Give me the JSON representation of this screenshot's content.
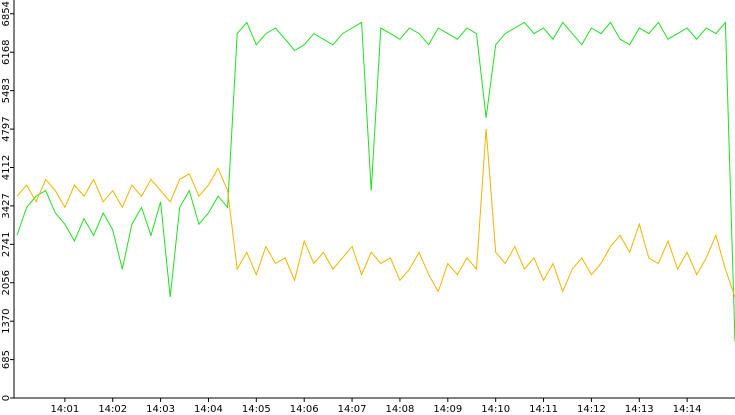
{
  "chart_data": {
    "type": "line",
    "x": [
      0,
      0.2,
      0.4,
      0.6,
      0.8,
      1.0,
      1.2,
      1.4,
      1.6,
      1.8,
      2.0,
      2.2,
      2.4,
      2.6,
      2.8,
      3.0,
      3.2,
      3.4,
      3.6,
      3.8,
      4.0,
      4.2,
      4.4,
      4.6,
      4.8,
      5.0,
      5.2,
      5.4,
      5.6,
      5.8,
      6.0,
      6.2,
      6.4,
      6.6,
      6.8,
      7.0,
      7.2,
      7.4,
      7.6,
      7.8,
      8.0,
      8.2,
      8.4,
      8.6,
      8.8,
      9.0,
      9.2,
      9.4,
      9.6,
      9.8,
      10.0,
      10.2,
      10.4,
      10.6,
      10.8,
      11.0,
      11.2,
      11.4,
      11.6,
      11.8,
      12.0,
      12.2,
      12.4,
      12.6,
      12.8,
      13.0,
      13.2,
      13.4,
      13.6,
      13.8,
      14.0,
      14.2,
      14.4,
      14.6,
      14.8,
      15.0
    ],
    "series": [
      {
        "color": "#22dd22",
        "values": [
          2900,
          3400,
          3600,
          3700,
          3300,
          3100,
          2800,
          3200,
          2900,
          3300,
          3000,
          2300,
          3100,
          3400,
          2900,
          3500,
          1800,
          3400,
          3700,
          3100,
          3300,
          3600,
          3400,
          6500,
          6700,
          6300,
          6500,
          6600,
          6400,
          6200,
          6300,
          6500,
          6400,
          6300,
          6500,
          6600,
          6700,
          3700,
          6600,
          6500,
          6400,
          6600,
          6500,
          6300,
          6600,
          6500,
          6400,
          6600,
          6500,
          5000,
          6300,
          6500,
          6600,
          6700,
          6500,
          6600,
          6400,
          6700,
          6500,
          6300,
          6600,
          6500,
          6700,
          6400,
          6300,
          6600,
          6500,
          6700,
          6400,
          6500,
          6600,
          6400,
          6600,
          6500,
          6700,
          1000
        ]
      },
      {
        "color": "#f0b400",
        "values": [
          3600,
          3800,
          3500,
          3900,
          3700,
          3400,
          3800,
          3600,
          3900,
          3500,
          3700,
          3400,
          3800,
          3600,
          3900,
          3700,
          3500,
          3900,
          4000,
          3600,
          3800,
          4100,
          3700,
          2300,
          2600,
          2200,
          2700,
          2400,
          2500,
          2100,
          2800,
          2400,
          2600,
          2300,
          2500,
          2700,
          2200,
          2600,
          2400,
          2500,
          2100,
          2300,
          2600,
          2200,
          1900,
          2400,
          2200,
          2500,
          2300,
          4800,
          2600,
          2400,
          2700,
          2300,
          2500,
          2100,
          2400,
          1900,
          2300,
          2500,
          2200,
          2400,
          2700,
          2900,
          2600,
          3100,
          2500,
          2400,
          2800,
          2300,
          2600,
          2200,
          2500,
          2900,
          2300,
          1800
        ]
      }
    ],
    "xlim": [
      0,
      15
    ],
    "xticks": [
      {
        "value": 1,
        "label": "14:01"
      },
      {
        "value": 2,
        "label": "14:02"
      },
      {
        "value": 3,
        "label": "14:03"
      },
      {
        "value": 4,
        "label": "14:04"
      },
      {
        "value": 5,
        "label": "14:05"
      },
      {
        "value": 6,
        "label": "14:06"
      },
      {
        "value": 7,
        "label": "14:07"
      },
      {
        "value": 8,
        "label": "14:08"
      },
      {
        "value": 9,
        "label": "14:09"
      },
      {
        "value": 10,
        "label": "14:10"
      },
      {
        "value": 11,
        "label": "14:11"
      },
      {
        "value": 12,
        "label": "14:12"
      },
      {
        "value": 13,
        "label": "14:13"
      },
      {
        "value": 14,
        "label": "14:14"
      }
    ],
    "ylim": [
      0,
      7100
    ],
    "yticks": [
      0,
      685,
      1370,
      2056,
      2741,
      3427,
      4112,
      4797,
      5483,
      6168,
      6854
    ]
  }
}
